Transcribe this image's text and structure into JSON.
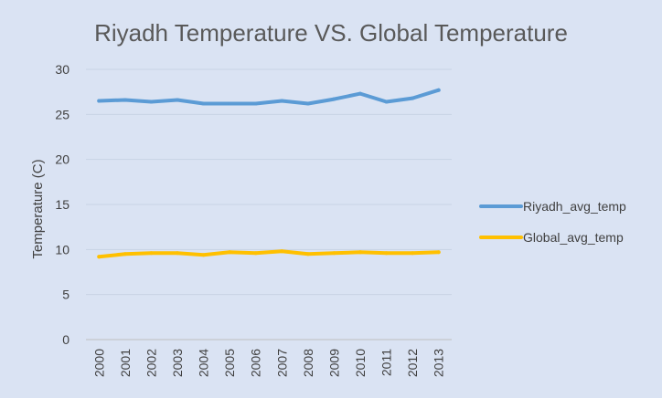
{
  "chart_data": {
    "type": "line",
    "title": "Riyadh Temperature VS. Global Temperature",
    "xlabel": "",
    "ylabel": "Temperature (C)",
    "categories": [
      "2000",
      "2001",
      "2002",
      "2003",
      "2004",
      "2005",
      "2006",
      "2007",
      "2008",
      "2009",
      "2010",
      "2011",
      "2012",
      "2013"
    ],
    "ylim": [
      0,
      30
    ],
    "yticks": [
      "0",
      "5",
      "10",
      "15",
      "20",
      "25",
      "30"
    ],
    "grid": true,
    "legend_position": "right",
    "series": [
      {
        "name": "Riyadh_avg_temp",
        "color": "#5b9bd5",
        "values": [
          26.5,
          26.6,
          26.4,
          26.6,
          26.2,
          26.2,
          26.2,
          26.5,
          26.2,
          26.7,
          27.3,
          26.4,
          26.8,
          27.7
        ]
      },
      {
        "name": "Global_avg_temp",
        "color": "#ffc000",
        "values": [
          9.2,
          9.5,
          9.6,
          9.6,
          9.4,
          9.7,
          9.6,
          9.8,
          9.5,
          9.6,
          9.7,
          9.6,
          9.6,
          9.7
        ]
      }
    ]
  }
}
